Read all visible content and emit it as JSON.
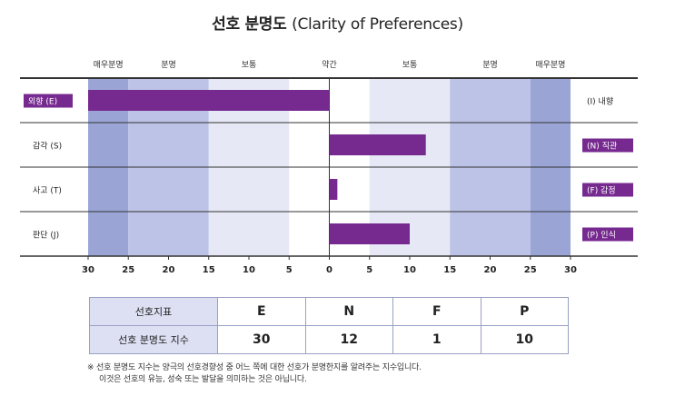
{
  "title": {
    "main": "선호 분명도",
    "sub": "(Clarity of Preferences)"
  },
  "chart_data": {
    "type": "bar",
    "orientation": "horizontal-diverging",
    "title": "선호 분명도 (Clarity of Preferences)",
    "xlim": [
      -30,
      30
    ],
    "x_ticks": [
      "30",
      "25",
      "20",
      "15",
      "10",
      "5",
      "0",
      "5",
      "10",
      "15",
      "20",
      "25",
      "30"
    ],
    "x_tick_values": [
      -30,
      -25,
      -20,
      -15,
      -10,
      -5,
      0,
      5,
      10,
      15,
      20,
      25,
      30
    ],
    "zones": [
      {
        "label": "매우분명",
        "from": -30,
        "to": -25,
        "color": "#9aa5d6"
      },
      {
        "label": "분명",
        "from": -25,
        "to": -15,
        "color": "#bcc3e6"
      },
      {
        "label": "보통",
        "from": -15,
        "to": -5,
        "color": "#e6e8f6"
      },
      {
        "label": "약간",
        "from": -5,
        "to": 5,
        "color": "#ffffff"
      },
      {
        "label": "보통",
        "from": 5,
        "to": 15,
        "color": "#e6e8f6"
      },
      {
        "label": "분명",
        "from": 15,
        "to": 25,
        "color": "#bcc3e6"
      },
      {
        "label": "매우분명",
        "from": 25,
        "to": 30,
        "color": "#9aa5d6"
      }
    ],
    "rows": [
      {
        "left_label": "외향 (E)",
        "right_label": "(I) 내향",
        "value": -30,
        "highlight": "left"
      },
      {
        "left_label": "감각 (S)",
        "right_label": "(N) 직관",
        "value": 12,
        "highlight": "right"
      },
      {
        "left_label": "사고 (T)",
        "right_label": "(F) 감정",
        "value": 1,
        "highlight": "right"
      },
      {
        "left_label": "판단 (J)",
        "right_label": "(P) 인식",
        "value": 10,
        "highlight": "right"
      }
    ],
    "bar_color": "#762a8f"
  },
  "table": {
    "row1_header": "선호지표",
    "preferences": [
      "E",
      "N",
      "F",
      "P"
    ],
    "row2_header": "선호 분명도 지수",
    "scores": [
      "30",
      "12",
      "1",
      "10"
    ]
  },
  "note": {
    "line1": "※ 선호 분명도 지수는 양극의 선호경향성 중 어느 쪽에 대한 선호가 분명한지를 알려주는 지수입니다.",
    "line2": "이것은 선호의 유능, 성숙 또는 발달을 의미하는 것은 아닙니다."
  }
}
